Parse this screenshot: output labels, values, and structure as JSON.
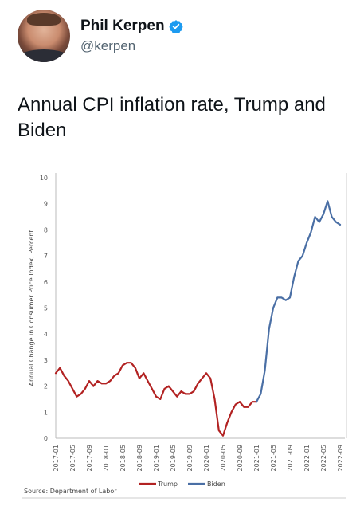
{
  "tweet": {
    "author_name": "Phil Kerpen",
    "handle": "@kerpen",
    "text": "Annual CPI inflation rate, Trump and Biden"
  },
  "colors": {
    "trump": "#b22222",
    "biden": "#4a6fa5",
    "verified": "#1d9bf0"
  },
  "icons": {
    "verified": "verified-badge-icon"
  },
  "chart_data": {
    "type": "line",
    "ylabel": "Annual Change in Consumer Price Index, Percent",
    "ylim": [
      0,
      10
    ],
    "yticks": [
      "0",
      "1",
      "2",
      "3",
      "4",
      "5",
      "6",
      "7",
      "8",
      "9",
      "10"
    ],
    "xticks": [
      "2017-01",
      "2017-05",
      "2017-09",
      "2018-01",
      "2018-05",
      "2018-09",
      "2019-01",
      "2019-05",
      "2019-09",
      "2020-01",
      "2020-05",
      "2020-09",
      "2021-01",
      "2021-05",
      "2021-09",
      "2022-01",
      "2022-05",
      "2022-09"
    ],
    "source": "Source: Department of Labor",
    "series": [
      {
        "name": "Trump",
        "x": [
          "2017-01",
          "2017-02",
          "2017-03",
          "2017-04",
          "2017-05",
          "2017-06",
          "2017-07",
          "2017-08",
          "2017-09",
          "2017-10",
          "2017-11",
          "2017-12",
          "2018-01",
          "2018-02",
          "2018-03",
          "2018-04",
          "2018-05",
          "2018-06",
          "2018-07",
          "2018-08",
          "2018-09",
          "2018-10",
          "2018-11",
          "2018-12",
          "2019-01",
          "2019-02",
          "2019-03",
          "2019-04",
          "2019-05",
          "2019-06",
          "2019-07",
          "2019-08",
          "2019-09",
          "2019-10",
          "2019-11",
          "2019-12",
          "2020-01",
          "2020-02",
          "2020-03",
          "2020-04",
          "2020-05",
          "2020-06",
          "2020-07",
          "2020-08",
          "2020-09",
          "2020-10",
          "2020-11",
          "2020-12",
          "2021-01"
        ],
        "values": [
          2.5,
          2.7,
          2.4,
          2.2,
          1.9,
          1.6,
          1.7,
          1.9,
          2.2,
          2.0,
          2.2,
          2.1,
          2.1,
          2.2,
          2.4,
          2.5,
          2.8,
          2.9,
          2.9,
          2.7,
          2.3,
          2.5,
          2.2,
          1.9,
          1.6,
          1.5,
          1.9,
          2.0,
          1.8,
          1.6,
          1.8,
          1.7,
          1.7,
          1.8,
          2.1,
          2.3,
          2.5,
          2.3,
          1.5,
          0.3,
          0.1,
          0.6,
          1.0,
          1.3,
          1.4,
          1.2,
          1.2,
          1.4,
          1.4
        ]
      },
      {
        "name": "Biden",
        "x": [
          "2021-01",
          "2021-02",
          "2021-03",
          "2021-04",
          "2021-05",
          "2021-06",
          "2021-07",
          "2021-08",
          "2021-09",
          "2021-10",
          "2021-11",
          "2021-12",
          "2022-01",
          "2022-02",
          "2022-03",
          "2022-04",
          "2022-05",
          "2022-06",
          "2022-07",
          "2022-08",
          "2022-09"
        ],
        "values": [
          1.4,
          1.7,
          2.6,
          4.2,
          5.0,
          5.4,
          5.4,
          5.3,
          5.4,
          6.2,
          6.8,
          7.0,
          7.5,
          7.9,
          8.5,
          8.3,
          8.6,
          9.1,
          8.5,
          8.3,
          8.2
        ]
      }
    ]
  }
}
